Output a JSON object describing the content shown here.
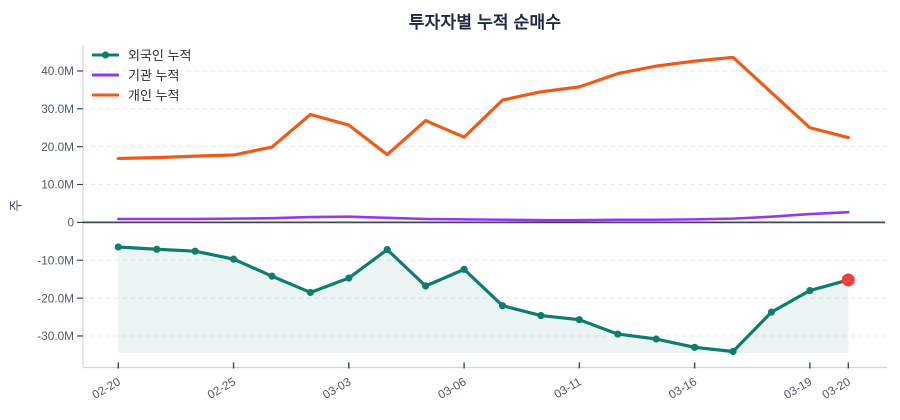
{
  "title": "투자자별 누적 순매수",
  "y_axis_title": "주",
  "colors": {
    "foreign": "#0d7d6e",
    "institution": "#9536f2",
    "individual": "#f05a17",
    "last_point_highlight": "#ef403a",
    "zero_line": "#3d4657",
    "axis_line": "#cfd5dd",
    "gridline": "#e4e7eb",
    "tick_text": "#4d5a6b",
    "title_text": "#1c2940",
    "legend_text": "#26303d",
    "area_fill": "rgba(13,125,110,0.08)"
  },
  "chart_data": {
    "type": "line",
    "title": "투자자별 누적 순매수",
    "xlabel": "",
    "ylabel": "주",
    "value_unit": "M (millions of shares)",
    "x_point_count": 20,
    "x_tick_labels": [
      {
        "index": 0,
        "label": "02-20"
      },
      {
        "index": 3,
        "label": "02-25"
      },
      {
        "index": 6,
        "label": "03-03"
      },
      {
        "index": 9,
        "label": "03-06"
      },
      {
        "index": 12,
        "label": "03-11"
      },
      {
        "index": 15,
        "label": "03-16"
      },
      {
        "index": 18,
        "label": "03-19"
      },
      {
        "index": 19,
        "label": "03-20"
      }
    ],
    "y_ticks": [
      {
        "value": 40,
        "label": "40.0M"
      },
      {
        "value": 30,
        "label": "30.0M"
      },
      {
        "value": 20,
        "label": "20.0M"
      },
      {
        "value": 10,
        "label": "10.0M"
      },
      {
        "value": 0,
        "label": "0"
      },
      {
        "value": -10,
        "label": "-10.0M"
      },
      {
        "value": -20,
        "label": "-20.0M"
      },
      {
        "value": -30,
        "label": "-30.0M"
      }
    ],
    "ylim": [
      -38,
      47
    ],
    "grid": "horizontal-dashed",
    "legend_position": "top-left",
    "series": [
      {
        "name": "외국인 누적",
        "color": "#0d7d6e",
        "style": "line+markers",
        "area_fill": true,
        "last_point_highlight_color": "#ef403a",
        "values": [
          -6.5,
          -7.1,
          -7.6,
          -9.7,
          -14.2,
          -18.5,
          -14.7,
          -7.2,
          -16.8,
          -12.4,
          -22.0,
          -24.6,
          -25.7,
          -29.5,
          -30.8,
          -33.0,
          -34.1,
          -23.7,
          -18.0,
          -15.2
        ]
      },
      {
        "name": "기관 누적",
        "color": "#9536f2",
        "style": "line",
        "area_fill": false,
        "values": [
          0.9,
          0.9,
          0.9,
          1.0,
          1.1,
          1.4,
          1.5,
          1.2,
          0.9,
          0.8,
          0.7,
          0.6,
          0.6,
          0.7,
          0.7,
          0.8,
          1.0,
          1.5,
          2.2,
          2.7
        ]
      },
      {
        "name": "개인 누적",
        "color": "#f05a17",
        "style": "line",
        "area_fill": false,
        "values": [
          16.9,
          17.1,
          17.5,
          17.8,
          19.9,
          28.5,
          25.7,
          17.9,
          26.9,
          22.5,
          32.3,
          34.5,
          35.8,
          39.3,
          41.3,
          42.6,
          43.6,
          34.3,
          25.0,
          22.4
        ]
      }
    ]
  }
}
